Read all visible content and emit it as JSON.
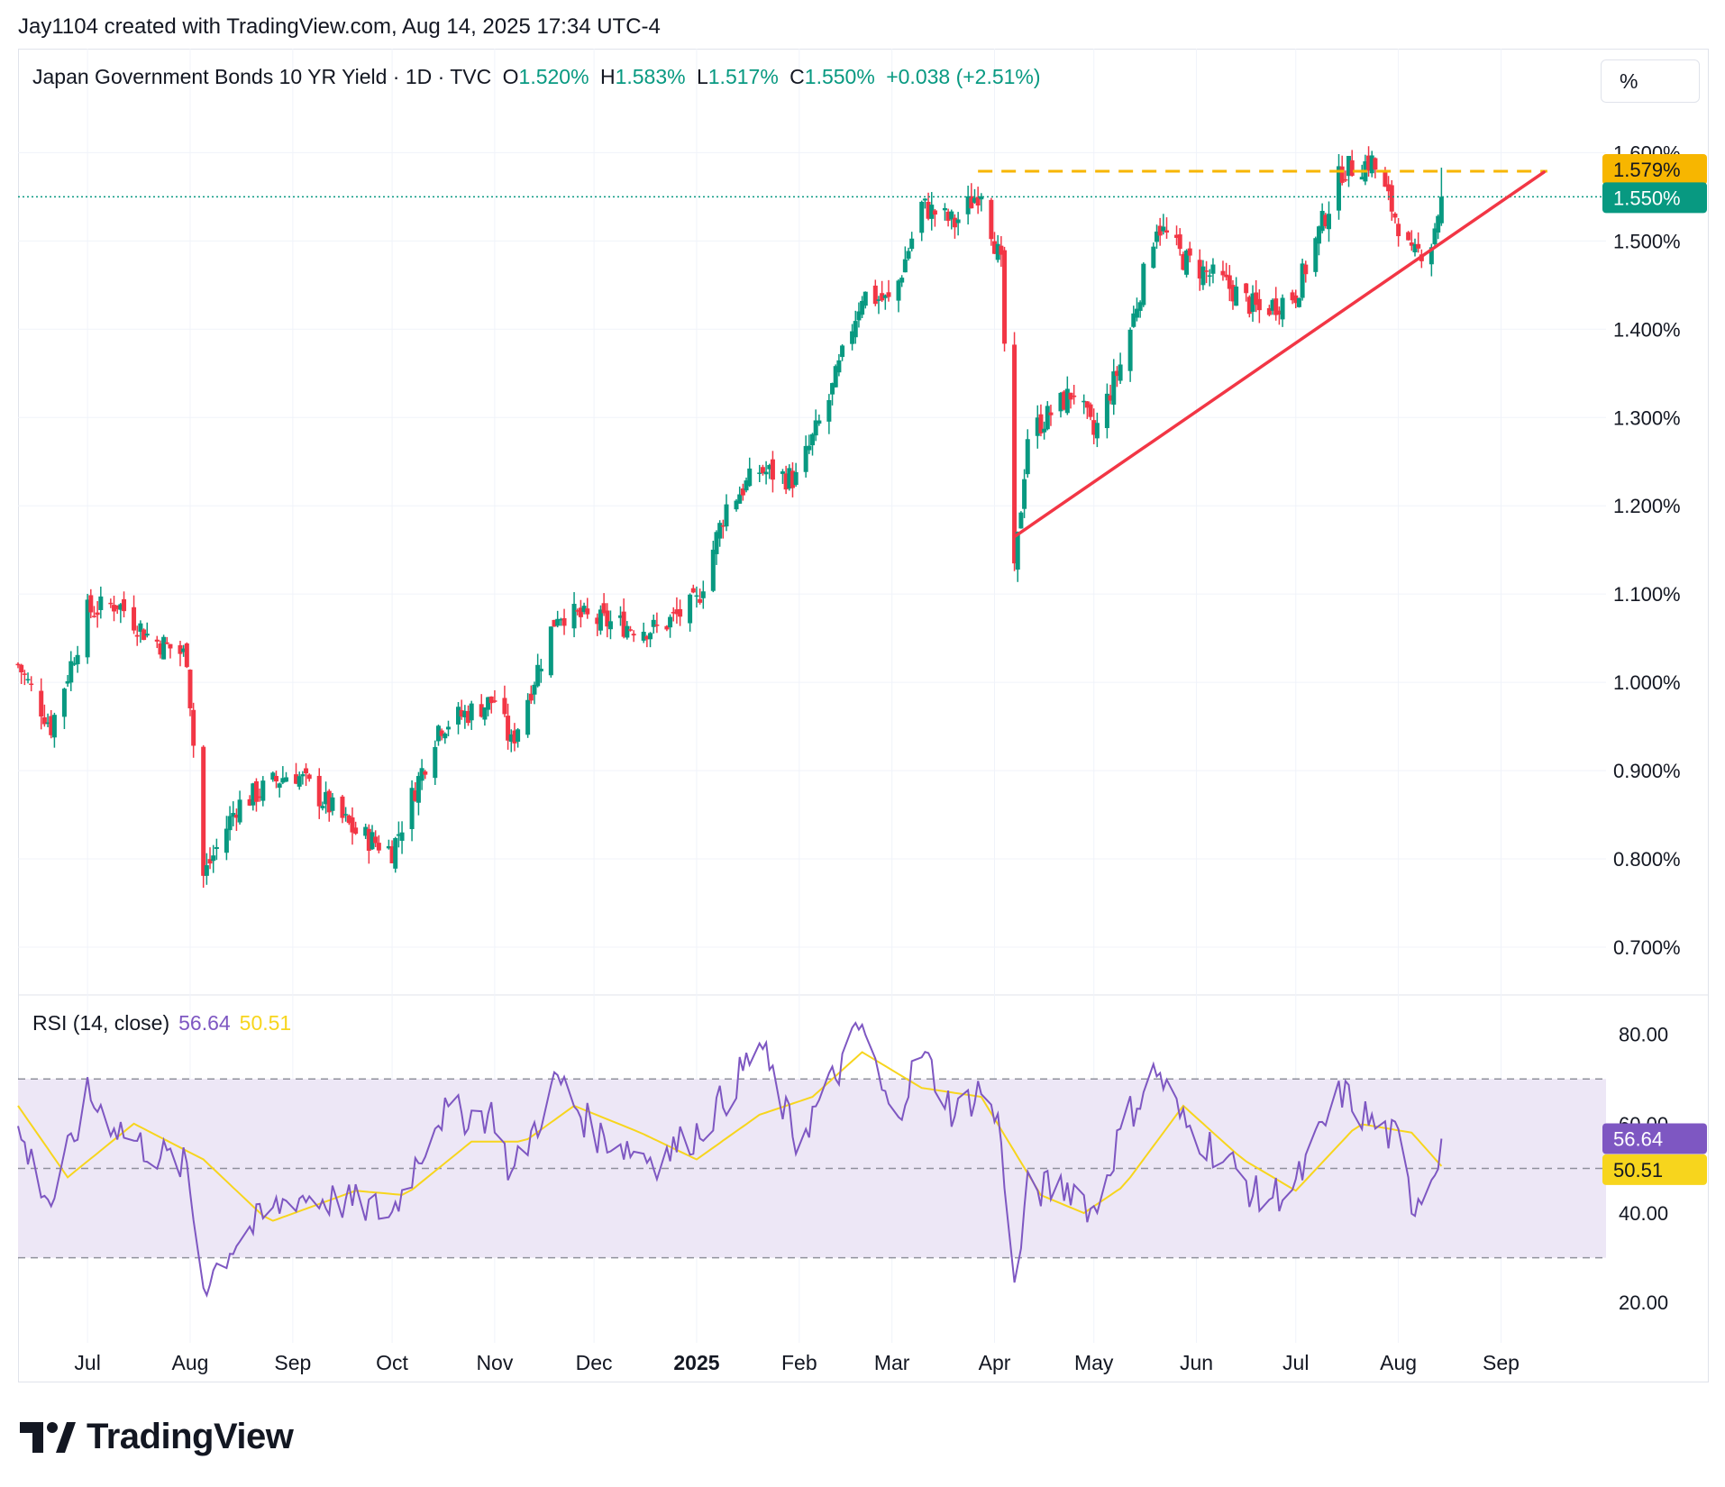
{
  "header": {
    "credit": "Jay1104 created with TradingView.com, Aug 14, 2025 17:34 UTC-4"
  },
  "legend": {
    "title": "Japan Government Bonds 10 YR Yield · 1D · TVC",
    "o_label": "O",
    "o_value": "1.520%",
    "h_label": "H",
    "h_value": "1.583%",
    "l_label": "L",
    "l_value": "1.517%",
    "c_label": "C",
    "c_value": "1.550%",
    "change": "+0.038 (+2.51%)"
  },
  "unit_button": {
    "label": "%"
  },
  "rsi_legend": {
    "label": "RSI (14, close)",
    "rsi_value": "56.64",
    "ma_value": "50.51"
  },
  "brand": {
    "name": "TradingView"
  },
  "colors": {
    "up": "#089981",
    "down": "#f23645",
    "trendline": "#f23645",
    "resistance": "#f7b600",
    "rsi": "#7e57c2",
    "rsi_ma": "#f7d51d",
    "rsi_band": "#ede7f6",
    "grid": "#f0f3fa",
    "text": "#131722"
  },
  "chart_data": [
    {
      "type": "candlestick",
      "title": "Japan Government Bonds 10 YR Yield · 1D · TVC",
      "y_unit": "%",
      "ylim": [
        0.65,
        1.63
      ],
      "y_ticks": [
        0.7,
        0.8,
        0.9,
        1.0,
        1.1,
        1.2,
        1.3,
        1.4,
        1.5,
        1.6
      ],
      "y_tick_labels": [
        "0.700%",
        "0.800%",
        "0.900%",
        "1.000%",
        "1.100%",
        "1.200%",
        "1.300%",
        "1.400%",
        "1.500%",
        "1.600%"
      ],
      "x_ticks": [
        "Jul",
        "Aug",
        "Sep",
        "Oct",
        "Nov",
        "Dec",
        "2025",
        "Feb",
        "Mar",
        "Apr",
        "May",
        "Jun",
        "Jul",
        "Aug",
        "Sep"
      ],
      "x_tick_dates": [
        "2024-07-01",
        "2024-08-01",
        "2024-09-01",
        "2024-10-01",
        "2024-11-01",
        "2024-12-01",
        "2025-01-01",
        "2025-02-01",
        "2025-03-01",
        "2025-04-01",
        "2025-05-01",
        "2025-06-01",
        "2025-07-01",
        "2025-08-01",
        "2025-09-01"
      ],
      "x_range": [
        "2024-06-10",
        "2025-09-30"
      ],
      "anchors": [
        [
          "2024-06-10",
          1.02
        ],
        [
          "2024-06-20",
          0.95
        ],
        [
          "2024-07-01",
          1.08
        ],
        [
          "2024-07-10",
          1.09
        ],
        [
          "2024-07-20",
          1.05
        ],
        [
          "2024-07-31",
          1.03
        ],
        [
          "2024-08-05",
          0.78
        ],
        [
          "2024-08-15",
          0.86
        ],
        [
          "2024-09-01",
          0.9
        ],
        [
          "2024-09-20",
          0.83
        ],
        [
          "2024-10-01",
          0.81
        ],
        [
          "2024-10-15",
          0.95
        ],
        [
          "2024-11-01",
          0.98
        ],
        [
          "2024-11-06",
          0.93
        ],
        [
          "2024-11-20",
          1.08
        ],
        [
          "2024-12-01",
          1.07
        ],
        [
          "2024-12-20",
          1.06
        ],
        [
          "2025-01-01",
          1.09
        ],
        [
          "2025-01-10",
          1.2
        ],
        [
          "2025-01-20",
          1.24
        ],
        [
          "2025-01-31",
          1.23
        ],
        [
          "2025-02-10",
          1.32
        ],
        [
          "2025-02-20",
          1.44
        ],
        [
          "2025-03-01",
          1.43
        ],
        [
          "2025-03-10",
          1.54
        ],
        [
          "2025-03-20",
          1.52
        ],
        [
          "2025-03-28",
          1.56
        ],
        [
          "2025-04-03",
          1.47
        ],
        [
          "2025-04-07",
          1.12
        ],
        [
          "2025-04-11",
          1.28
        ],
        [
          "2025-04-25",
          1.33
        ],
        [
          "2025-05-01",
          1.28
        ],
        [
          "2025-05-10",
          1.37
        ],
        [
          "2025-05-20",
          1.52
        ],
        [
          "2025-05-28",
          1.48
        ],
        [
          "2025-06-10",
          1.45
        ],
        [
          "2025-06-20",
          1.42
        ],
        [
          "2025-07-01",
          1.44
        ],
        [
          "2025-07-10",
          1.53
        ],
        [
          "2025-07-15",
          1.58
        ],
        [
          "2025-07-24",
          1.59
        ],
        [
          "2025-08-01",
          1.52
        ],
        [
          "2025-08-05",
          1.48
        ],
        [
          "2025-08-11",
          1.5
        ],
        [
          "2025-08-14",
          1.55
        ]
      ],
      "last": {
        "open": 1.52,
        "high": 1.583,
        "low": 1.517,
        "close": 1.55,
        "label": "1.550%"
      },
      "resistance": {
        "value": 1.579,
        "label": "1.579%",
        "from": "2025-03-27",
        "to": "2025-09-15"
      },
      "trendline": {
        "from": [
          "2025-04-07",
          1.165
        ],
        "to": [
          "2025-09-14",
          1.578
        ]
      }
    },
    {
      "type": "line",
      "title": "RSI (14, close)",
      "ylim": [
        15,
        88
      ],
      "y_ticks": [
        20,
        40,
        60,
        80
      ],
      "y_tick_labels": [
        "20.00",
        "40.00",
        "60.00",
        "80.00"
      ],
      "bands": {
        "upper": 70,
        "middle": 50,
        "lower": 30
      },
      "series": [
        {
          "name": "RSI",
          "last": 56.64,
          "label": "56.64",
          "anchors": [
            [
              "2024-06-10",
              58
            ],
            [
              "2024-06-20",
              42
            ],
            [
              "2024-07-01",
              66
            ],
            [
              "2024-07-15",
              56
            ],
            [
              "2024-07-31",
              50
            ],
            [
              "2024-08-05",
              24
            ],
            [
              "2024-08-15",
              34
            ],
            [
              "2024-09-01",
              44
            ],
            [
              "2024-09-20",
              42
            ],
            [
              "2024-10-01",
              40
            ],
            [
              "2024-10-15",
              62
            ],
            [
              "2024-11-01",
              62
            ],
            [
              "2024-11-06",
              48
            ],
            [
              "2024-11-20",
              70
            ],
            [
              "2024-12-01",
              58
            ],
            [
              "2024-12-20",
              52
            ],
            [
              "2025-01-01",
              58
            ],
            [
              "2025-01-10",
              66
            ],
            [
              "2025-01-20",
              78
            ],
            [
              "2025-01-31",
              56
            ],
            [
              "2025-02-10",
              68
            ],
            [
              "2025-02-20",
              82
            ],
            [
              "2025-03-01",
              60
            ],
            [
              "2025-03-10",
              76
            ],
            [
              "2025-03-20",
              62
            ],
            [
              "2025-03-28",
              68
            ],
            [
              "2025-04-03",
              58
            ],
            [
              "2025-04-07",
              22
            ],
            [
              "2025-04-11",
              45
            ],
            [
              "2025-04-25",
              46
            ],
            [
              "2025-05-01",
              40
            ],
            [
              "2025-05-10",
              60
            ],
            [
              "2025-05-20",
              72
            ],
            [
              "2025-05-28",
              60
            ],
            [
              "2025-06-10",
              52
            ],
            [
              "2025-06-20",
              43
            ],
            [
              "2025-07-01",
              46
            ],
            [
              "2025-07-10",
              60
            ],
            [
              "2025-07-15",
              67
            ],
            [
              "2025-07-24",
              60
            ],
            [
              "2025-08-01",
              56
            ],
            [
              "2025-08-05",
              42
            ],
            [
              "2025-08-11",
              48
            ],
            [
              "2025-08-14",
              56.64
            ]
          ]
        },
        {
          "name": "RSI MA",
          "last": 50.51,
          "label": "50.51",
          "anchors": [
            [
              "2024-06-10",
              64
            ],
            [
              "2024-06-25",
              48
            ],
            [
              "2024-07-15",
              60
            ],
            [
              "2024-08-05",
              52
            ],
            [
              "2024-08-25",
              38
            ],
            [
              "2024-09-20",
              45
            ],
            [
              "2024-10-05",
              44
            ],
            [
              "2024-10-25",
              56
            ],
            [
              "2024-11-10",
              56
            ],
            [
              "2024-11-25",
              64
            ],
            [
              "2024-12-15",
              58
            ],
            [
              "2025-01-01",
              52
            ],
            [
              "2025-01-20",
              62
            ],
            [
              "2025-02-05",
              66
            ],
            [
              "2025-02-20",
              76
            ],
            [
              "2025-03-10",
              68
            ],
            [
              "2025-03-28",
              66
            ],
            [
              "2025-04-15",
              44
            ],
            [
              "2025-04-28",
              40
            ],
            [
              "2025-05-10",
              46
            ],
            [
              "2025-05-28",
              64
            ],
            [
              "2025-06-15",
              52
            ],
            [
              "2025-07-01",
              45
            ],
            [
              "2025-07-20",
              60
            ],
            [
              "2025-08-05",
              58
            ],
            [
              "2025-08-14",
              50.51
            ]
          ]
        }
      ]
    }
  ]
}
